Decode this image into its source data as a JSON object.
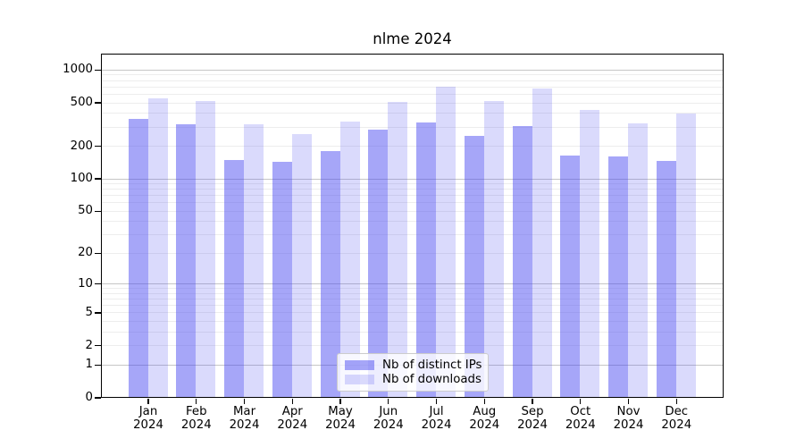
{
  "chart_data": {
    "type": "bar",
    "title": "nlme 2024",
    "categories": [
      "Jan 2024",
      "Feb 2024",
      "Mar 2024",
      "Apr 2024",
      "May 2024",
      "Jun 2024",
      "Jul 2024",
      "Aug 2024",
      "Sep 2024",
      "Oct 2024",
      "Nov 2024",
      "Dec 2024"
    ],
    "series": [
      {
        "name": "Nb of distinct IPs",
        "color": "#4646F07A",
        "values": [
          354,
          316,
          148,
          141,
          177,
          279,
          330,
          247,
          302,
          164,
          158,
          144
        ]
      },
      {
        "name": "Nb of downloads",
        "color": "#4646F033",
        "values": [
          543,
          517,
          316,
          256,
          331,
          506,
          695,
          515,
          674,
          428,
          319,
          392
        ]
      }
    ],
    "y_axis": {
      "ticks": [
        0,
        1,
        2,
        5,
        10,
        20,
        50,
        100,
        200,
        500,
        1000
      ],
      "scale": "log10(1+x)",
      "ylim": [
        0,
        1400
      ],
      "major_gridlines": [
        1,
        10,
        100,
        1000
      ],
      "major_grid_color": "#c6c6c6",
      "minor_grid_color": "#ededed"
    },
    "legend": {
      "position": "bottom-center",
      "frame_color": "#cccccc",
      "background": "#ffffff"
    },
    "grid": "horizontal-only"
  }
}
